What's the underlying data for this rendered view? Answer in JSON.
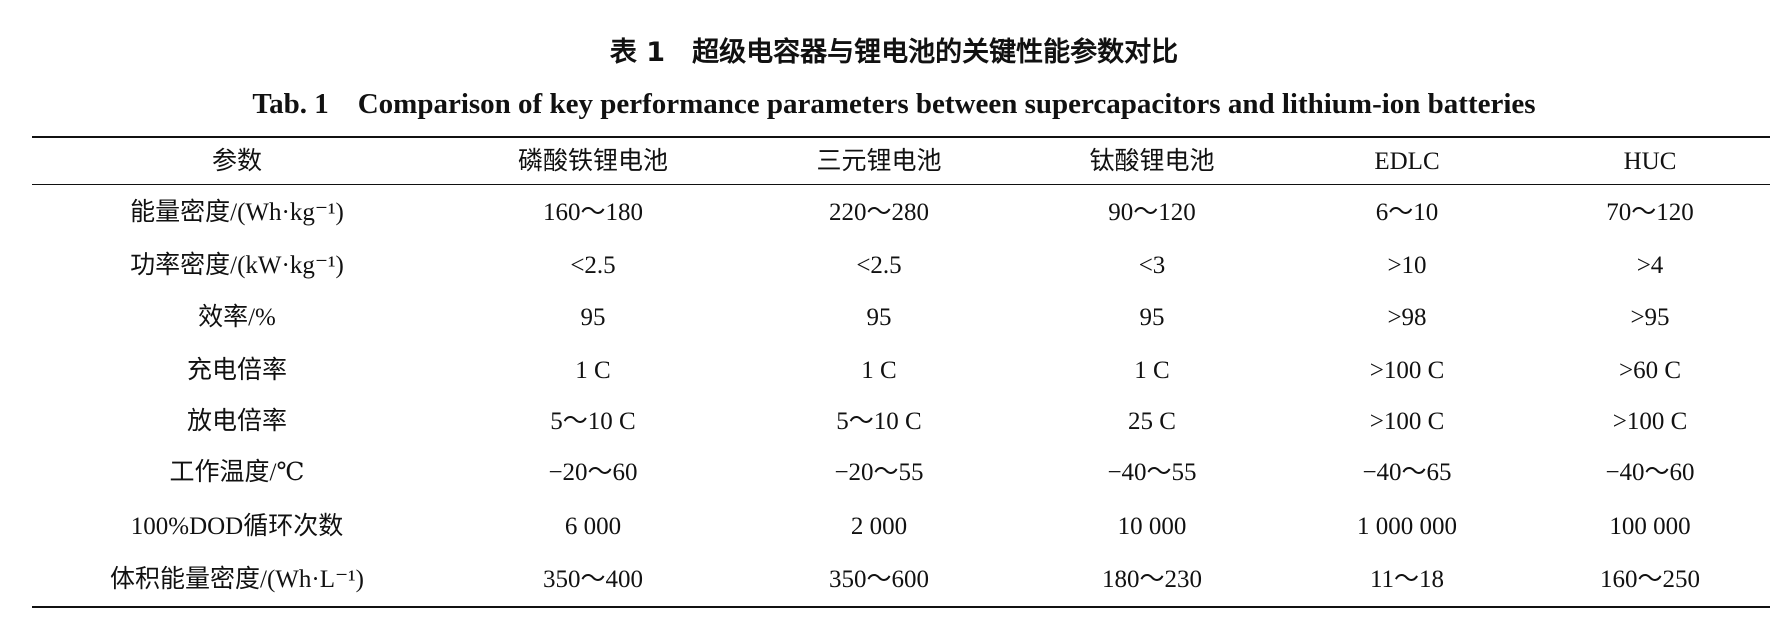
{
  "title_cn": "表 1　超级电容器与锂电池的关键性能参数对比",
  "title_en": "Tab. 1　Comparison of key performance parameters between supercapacitors and lithium-ion batteries",
  "table": {
    "header": [
      "参数",
      "磷酸铁锂电池",
      "三元锂电池",
      "钛酸锂电池",
      "EDLC",
      "HUC"
    ],
    "rows": [
      [
        "能量密度/(Wh·kg⁻¹)",
        "160～180",
        "220～280",
        "90～120",
        "6～10",
        "70～120"
      ],
      [
        "功率密度/(kW·kg⁻¹)",
        "<2.5",
        "<2.5",
        "<3",
        ">10",
        ">4"
      ],
      [
        "效率/%",
        "95",
        "95",
        "95",
        ">98",
        ">95"
      ],
      [
        "充电倍率",
        "1 C",
        "1 C",
        "1 C",
        ">100 C",
        ">60 C"
      ],
      [
        "放电倍率",
        "5～10 C",
        "5～10 C",
        "25 C",
        ">100 C",
        ">100 C"
      ],
      [
        "工作温度/℃",
        "−20～60",
        "−20～55",
        "−40～55",
        "−40～65",
        "−40～60"
      ],
      [
        "100%DOD循环次数",
        "6 000",
        "2 000",
        "10 000",
        "1 000 000",
        "100 000"
      ],
      [
        "体积能量密度/(Wh·L⁻¹)",
        "350～400",
        "350～600",
        "180～230",
        "11～18",
        "160～250"
      ]
    ]
  }
}
